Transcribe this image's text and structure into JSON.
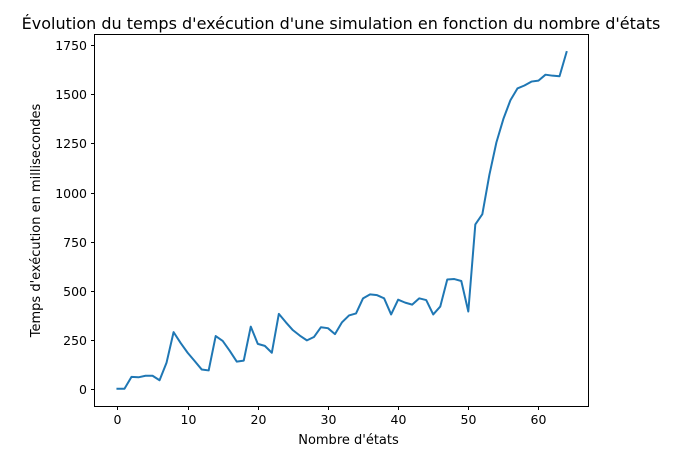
{
  "chart_data": {
    "type": "line",
    "title": "Évolution du temps d'exécution d'une simulation en fonction du nombre d'états",
    "xlabel": "Nombre d'états",
    "ylabel": "Temps d'exécution en millisecondes",
    "xlim": [
      -3.2,
      67.2
    ],
    "ylim": [
      -86,
      1802
    ],
    "xticks": [
      0,
      10,
      20,
      30,
      40,
      50,
      60
    ],
    "xtick_labels": [
      "0",
      "10",
      "20",
      "30",
      "40",
      "50",
      "60"
    ],
    "yticks": [
      0,
      250,
      500,
      750,
      1000,
      1250,
      1500,
      1750
    ],
    "ytick_labels": [
      "0",
      "250",
      "500",
      "750",
      "1000",
      "1250",
      "1500",
      "1750"
    ],
    "grid": false,
    "series": [
      {
        "color": "#1f77b4",
        "x": [
          0,
          1,
          2,
          3,
          4,
          5,
          6,
          7,
          8,
          9,
          10,
          11,
          12,
          13,
          14,
          15,
          16,
          17,
          18,
          19,
          20,
          21,
          22,
          23,
          24,
          25,
          26,
          27,
          28,
          29,
          30,
          31,
          32,
          33,
          34,
          35,
          36,
          37,
          38,
          39,
          40,
          41,
          42,
          43,
          44,
          45,
          46,
          47,
          48,
          49,
          50,
          51,
          52,
          53,
          54,
          55,
          56,
          57,
          58,
          59,
          60,
          61,
          62,
          63,
          64
        ],
        "y": [
          2,
          2,
          62,
          60,
          68,
          68,
          45,
          135,
          290,
          235,
          185,
          143,
          100,
          95,
          270,
          245,
          195,
          140,
          145,
          318,
          230,
          220,
          185,
          383,
          340,
          300,
          272,
          248,
          265,
          315,
          310,
          280,
          340,
          375,
          385,
          462,
          482,
          478,
          462,
          380,
          455,
          440,
          430,
          462,
          453,
          380,
          420,
          558,
          560,
          550,
          395,
          838,
          890,
          1090,
          1255,
          1375,
          1470,
          1530,
          1545,
          1565,
          1570,
          1600,
          1595,
          1592,
          1715
        ]
      }
    ]
  }
}
